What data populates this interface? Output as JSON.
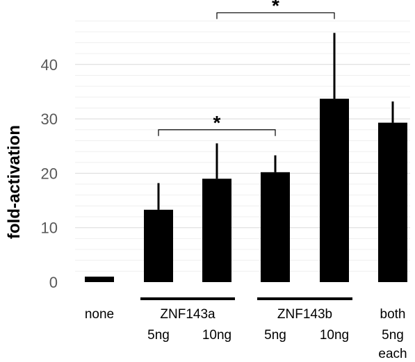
{
  "chart_data": {
    "type": "bar",
    "ylabel": "fold-activation",
    "ylim": [
      0,
      50
    ],
    "yticks": [
      0,
      10,
      20,
      30,
      40
    ],
    "grid": true,
    "bar_color": "#000000",
    "grid_color": "#d9d9d9",
    "categories": [
      "none",
      "ZNF143a 5ng",
      "ZNF143a 10ng",
      "ZNF143b 5ng",
      "ZNF143b 10ng",
      "both 5ng each"
    ],
    "values": [
      1,
      13.3,
      19,
      20.2,
      33.7,
      29.3
    ],
    "errors": [
      0,
      4.9,
      6.5,
      3.1,
      12.1,
      3.9
    ],
    "group_labels": [
      {
        "label": "none",
        "bars": [
          0
        ]
      },
      {
        "label": "ZNF143a",
        "bars": [
          1,
          2
        ]
      },
      {
        "label": "ZNF143b",
        "bars": [
          3,
          4
        ]
      },
      {
        "label": "both",
        "bars": [
          5
        ]
      }
    ],
    "sub_labels": [
      "",
      "5ng",
      "10ng",
      "5ng",
      "10ng",
      "5ng\neach"
    ],
    "significance": [
      {
        "from": 1,
        "to": 3,
        "label": "*",
        "y": 28
      },
      {
        "from": 2,
        "to": 4,
        "label": "*",
        "y": 49.5
      }
    ]
  }
}
